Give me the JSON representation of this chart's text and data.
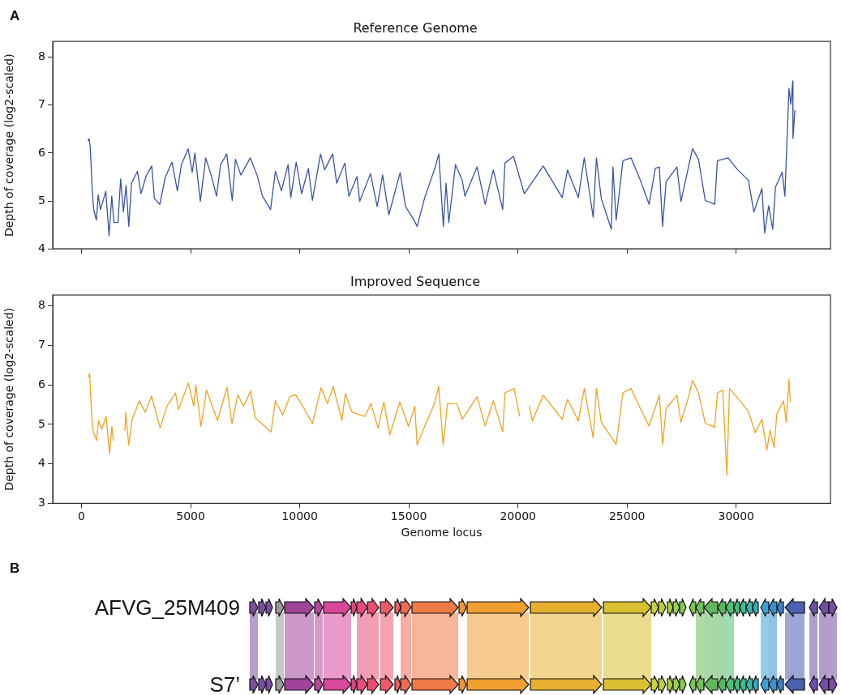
{
  "chart_data": [
    {
      "type": "line",
      "title": "Reference Genome",
      "ylabel": "Depth of coverage (log2-scaled)",
      "annotations": [
        "A"
      ],
      "x": [
        300,
        345,
        400,
        495,
        557,
        680,
        766,
        866,
        1114,
        1262,
        1386,
        1485,
        1670,
        1794,
        1918,
        2042,
        2166,
        2290,
        2563,
        2723,
        2970,
        3218,
        3341,
        3589,
        3836,
        4146,
        4393,
        4578,
        4887,
        5073,
        5197,
        5444,
        5692,
        5939,
        6187,
        6373,
        6657,
        6905,
        7054,
        7301,
        7735,
        8044,
        8292,
        8663,
        8885,
        9158,
        9467,
        9591,
        9838,
        10086,
        10395,
        10580,
        10951,
        11137,
        11508,
        11694,
        12065,
        12251,
        12622,
        12746,
        13241,
        13550,
        13798,
        14082,
        14602,
        14849,
        15158,
        15381,
        15715,
        16210,
        16371,
        16581,
        16705,
        16829,
        17138,
        17448,
        17570,
        18127,
        18498,
        18869,
        19302,
        19401,
        19797,
        20292,
        21158,
        22024,
        22272,
        22767,
        23039,
        23447,
        23596,
        23819,
        24277,
        24351,
        24500,
        24809,
        25180,
        25613,
        26009,
        26293,
        26479,
        26627,
        26788,
        27283,
        27469,
        27840,
        28001,
        28273,
        28582,
        29015,
        29139,
        29634,
        30067,
        30562,
        30809,
        31181,
        31304,
        31490,
        31675,
        31799,
        32108,
        32232,
        32418,
        32505,
        32591,
        32603,
        32690
      ],
      "series": [
        {
          "color": "#3a53a4",
          "values": [
            6.25,
            6.3,
            6.13,
            5.2,
            4.82,
            4.6,
            5.13,
            4.82,
            5.2,
            4.27,
            5.1,
            4.55,
            4.55,
            5.46,
            4.77,
            5.32,
            4.47,
            5.37,
            5.62,
            5.15,
            5.53,
            5.73,
            5.05,
            4.93,
            5.49,
            5.81,
            5.21,
            5.76,
            6.09,
            5.6,
            6.0,
            4.99,
            5.9,
            5.54,
            5.1,
            5.76,
            5.98,
            5.01,
            5.87,
            5.54,
            5.9,
            5.54,
            5.1,
            4.82,
            5.62,
            5.21,
            5.76,
            5.07,
            5.81,
            5.15,
            5.68,
            5.01,
            5.98,
            5.65,
            5.98,
            5.37,
            5.79,
            5.1,
            5.51,
            4.99,
            5.57,
            4.88,
            5.54,
            4.71,
            5.59,
            4.88,
            4.66,
            4.47,
            5.05,
            5.71,
            5.98,
            4.47,
            5.37,
            4.55,
            5.76,
            5.43,
            5.1,
            5.71,
            4.93,
            5.65,
            4.82,
            5.79,
            5.93,
            5.15,
            5.73,
            5.07,
            5.65,
            5.07,
            5.9,
            4.66,
            5.9,
            5.05,
            4.41,
            5.71,
            4.6,
            5.84,
            5.9,
            5.43,
            4.93,
            5.68,
            5.71,
            4.47,
            5.4,
            5.71,
            4.99,
            5.76,
            6.09,
            5.87,
            5.01,
            4.93,
            5.84,
            5.9,
            5.65,
            5.43,
            4.77,
            5.26,
            4.33,
            4.9,
            4.41,
            5.29,
            5.6,
            5.1,
            7.35,
            7.02,
            7.5,
            6.3,
            6.9
          ]
        }
      ],
      "xlim": [
        -1320,
        34320
      ],
      "ylim": [
        4,
        8.33
      ],
      "xticks": [
        0,
        5000,
        10000,
        15000,
        20000,
        25000,
        30000
      ],
      "yticks": [
        4,
        5,
        6,
        7,
        8
      ],
      "tick_labels": "y"
    },
    {
      "type": "line",
      "title": "Improved Sequence",
      "xlabel": "Genome locus",
      "ylabel": "Depth of coverage (log2-scaled)",
      "x": [
        300,
        370,
        464,
        530,
        690,
        783,
        928,
        1127,
        1285,
        1392,
        1458,
        1700,
        1989,
        2028,
        2162,
        2320,
        2651,
        2918,
        3208,
        3602,
        3912,
        4307,
        4440,
        4901,
        5144,
        5235,
        5475,
        5726,
        6232,
        6667,
        6893,
        7160,
        7424,
        7756,
        7955,
        8684,
        8884,
        9215,
        9546,
        9813,
        10142,
        10579,
        10977,
        11270,
        11534,
        11931,
        12090,
        12395,
        12992,
        13257,
        13591,
        13855,
        14122,
        14585,
        14982,
        15272,
        15379,
        15776,
        16173,
        16370,
        16571,
        16771,
        17200,
        17446,
        18127,
        18498,
        18869,
        19302,
        19402,
        19822,
        20082,
        20300,
        20516,
        20665,
        21158,
        22024,
        22272,
        22767,
        23039,
        23447,
        23596,
        23819,
        24500,
        24809,
        25180,
        25613,
        26009,
        26479,
        26627,
        26788,
        27283,
        27469,
        27840,
        28001,
        28273,
        28582,
        29015,
        29139,
        29386,
        29572,
        29696,
        30067,
        30562,
        30871,
        31181,
        31404,
        31552,
        31738,
        31861,
        32170,
        32294,
        32418,
        32480
      ],
      "series": [
        {
          "color": "#f7a11f",
          "values": [
            6.19,
            6.29,
            5.24,
            4.84,
            4.59,
            5.1,
            4.88,
            5.2,
            4.26,
            4.95,
            4.59,
            null,
            4.84,
            5.31,
            4.48,
            5.13,
            5.6,
            5.31,
            5.72,
            4.91,
            5.46,
            5.8,
            5.38,
            6.05,
            5.46,
            6.0,
            4.95,
            5.87,
            5.1,
            5.94,
            5.02,
            5.75,
            5.46,
            5.85,
            5.17,
            4.81,
            5.6,
            5.24,
            5.71,
            5.75,
            5.46,
            5.02,
            5.93,
            5.53,
            5.96,
            5.1,
            5.78,
            5.31,
            5.2,
            5.53,
            4.91,
            5.57,
            4.73,
            5.57,
            4.95,
            5.46,
            4.48,
            5.02,
            5.53,
            5.96,
            4.48,
            5.53,
            5.53,
            5.13,
            5.7,
            4.96,
            5.6,
            4.82,
            5.8,
            5.91,
            5.2,
            null,
            5.47,
            5.09,
            5.74,
            5.13,
            5.64,
            5.09,
            5.91,
            4.66,
            5.91,
            5.06,
            4.49,
            5.8,
            5.91,
            5.4,
            4.96,
            5.74,
            4.49,
            5.4,
            5.74,
            5.06,
            5.74,
            6.11,
            5.8,
            5.03,
            4.93,
            5.8,
            5.87,
            3.71,
            5.91,
            5.67,
            5.33,
            4.79,
            5.13,
            4.35,
            4.86,
            4.42,
            5.26,
            5.6,
            5.06,
            6.14,
            5.57
          ]
        }
      ],
      "xlim": [
        -1320,
        34320
      ],
      "ylim": [
        3,
        8.28
      ],
      "xticks": [
        0,
        5000,
        10000,
        15000,
        20000,
        25000,
        30000
      ],
      "yticks": [
        3,
        4,
        5,
        6,
        7,
        8
      ]
    },
    {
      "type": "other",
      "title": "B",
      "annotations": [
        "AFVG_25M409",
        "S7’"
      ]
    }
  ]
}
